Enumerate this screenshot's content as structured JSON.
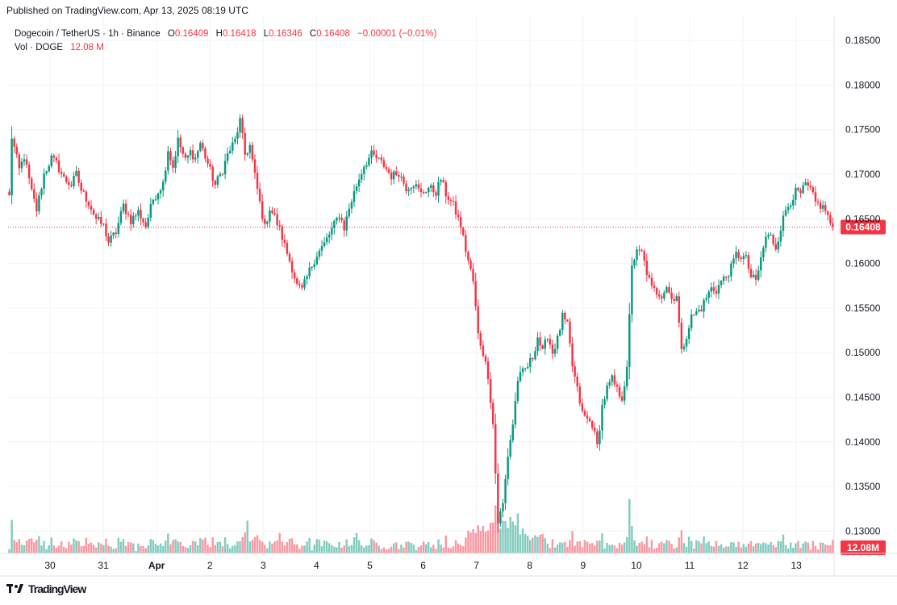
{
  "header": {
    "published": "Published on TradingView.com, Apr 13, 2025 08:19 UTC"
  },
  "legend": {
    "symbol": "Dogecoin / TetherUS · 1h · Binance",
    "o_label": "O",
    "o_value": "0.16409",
    "h_label": "H",
    "h_value": "0.16418",
    "l_label": "L",
    "l_value": "0.16346",
    "c_label": "C",
    "c_value": "0.16408",
    "change": "−0.00001 (−0.01%)",
    "vol_label": "Vol · DOGE",
    "vol_value": "12.08 M"
  },
  "footer": {
    "brand": "TradingView"
  },
  "colors": {
    "up": "#089981",
    "down": "#f23645",
    "grid": "#f0f3fa",
    "axis_text": "#131722"
  },
  "chart_data": {
    "type": "candlestick",
    "symbol": "DOGE/USDT",
    "interval": "1h",
    "y_ticks": [
      "0.18500",
      "0.18000",
      "0.17500",
      "0.17000",
      "0.16500",
      "0.16000",
      "0.15500",
      "0.15000",
      "0.14500",
      "0.14000",
      "0.13500",
      "0.13000"
    ],
    "ylim": [
      0.1275,
      0.187
    ],
    "x_ticks": [
      "30",
      "31",
      "Apr",
      "2",
      "3",
      "4",
      "5",
      "6",
      "7",
      "8",
      "9",
      "10",
      "11",
      "12",
      "13"
    ],
    "last_price_label": "0.16408",
    "last_price": 0.16408,
    "volume_label": "12.08M",
    "anchors": [
      [
        0,
        0.1675
      ],
      [
        1,
        0.1742
      ],
      [
        4,
        0.1705
      ],
      [
        6,
        0.172
      ],
      [
        9,
        0.168
      ],
      [
        11,
        0.166
      ],
      [
        14,
        0.17
      ],
      [
        17,
        0.1718
      ],
      [
        19,
        0.1712
      ],
      [
        22,
        0.1695
      ],
      [
        25,
        0.1688
      ],
      [
        27,
        0.17
      ],
      [
        29,
        0.1682
      ],
      [
        32,
        0.1668
      ],
      [
        35,
        0.165
      ],
      [
        38,
        0.1642
      ],
      [
        40,
        0.1624
      ],
      [
        43,
        0.1635
      ],
      [
        46,
        0.1665
      ],
      [
        49,
        0.1648
      ],
      [
        52,
        0.1658
      ],
      [
        55,
        0.1642
      ],
      [
        58,
        0.1672
      ],
      [
        62,
        0.169
      ],
      [
        64,
        0.1728
      ],
      [
        66,
        0.1708
      ],
      [
        68,
        0.1738
      ],
      [
        71,
        0.1715
      ],
      [
        73,
        0.1725
      ],
      [
        75,
        0.1718
      ],
      [
        77,
        0.1735
      ],
      [
        80,
        0.1712
      ],
      [
        83,
        0.1688
      ],
      [
        86,
        0.1705
      ],
      [
        88,
        0.1722
      ],
      [
        91,
        0.1738
      ],
      [
        93,
        0.176
      ],
      [
        95,
        0.1722
      ],
      [
        97,
        0.1732
      ],
      [
        99,
        0.1698
      ],
      [
        101,
        0.1668
      ],
      [
        103,
        0.164
      ],
      [
        105,
        0.1662
      ],
      [
        107,
        0.1652
      ],
      [
        109,
        0.1638
      ],
      [
        111,
        0.162
      ],
      [
        114,
        0.1595
      ],
      [
        116,
        0.1575
      ],
      [
        118,
        0.157
      ],
      [
        121,
        0.1592
      ],
      [
        124,
        0.161
      ],
      [
        127,
        0.1622
      ],
      [
        130,
        0.1638
      ],
      [
        133,
        0.1655
      ],
      [
        135,
        0.164
      ],
      [
        137,
        0.1662
      ],
      [
        140,
        0.1688
      ],
      [
        143,
        0.171
      ],
      [
        146,
        0.1722
      ],
      [
        148,
        0.1718
      ],
      [
        151,
        0.171
      ],
      [
        154,
        0.1698
      ],
      [
        157,
        0.1702
      ],
      [
        160,
        0.1685
      ],
      [
        163,
        0.169
      ],
      [
        166,
        0.1678
      ],
      [
        169,
        0.1685
      ],
      [
        172,
        0.168
      ],
      [
        174,
        0.1695
      ],
      [
        176,
        0.1678
      ],
      [
        179,
        0.1665
      ],
      [
        182,
        0.1642
      ],
      [
        184,
        0.1615
      ],
      [
        187,
        0.158
      ],
      [
        189,
        0.152
      ],
      [
        191,
        0.15
      ],
      [
        193,
        0.1475
      ],
      [
        195,
        0.142
      ],
      [
        197,
        0.131
      ],
      [
        199,
        0.133
      ],
      [
        201,
        0.1385
      ],
      [
        203,
        0.142
      ],
      [
        205,
        0.147
      ],
      [
        207,
        0.1478
      ],
      [
        209,
        0.1485
      ],
      [
        211,
        0.1495
      ],
      [
        213,
        0.1518
      ],
      [
        215,
        0.15
      ],
      [
        217,
        0.152
      ],
      [
        219,
        0.15
      ],
      [
        221,
        0.1515
      ],
      [
        223,
        0.154
      ],
      [
        225,
        0.153
      ],
      [
        227,
        0.1485
      ],
      [
        229,
        0.1458
      ],
      [
        231,
        0.1432
      ],
      [
        233,
        0.1425
      ],
      [
        235,
        0.142
      ],
      [
        237,
        0.1395
      ],
      [
        239,
        0.144
      ],
      [
        241,
        0.146
      ],
      [
        243,
        0.147
      ],
      [
        245,
        0.1458
      ],
      [
        247,
        0.145
      ],
      [
        249,
        0.148
      ],
      [
        251,
        0.16
      ],
      [
        253,
        0.1612
      ],
      [
        255,
        0.1612
      ],
      [
        257,
        0.159
      ],
      [
        259,
        0.1572
      ],
      [
        261,
        0.1568
      ],
      [
        263,
        0.1565
      ],
      [
        265,
        0.1575
      ],
      [
        267,
        0.156
      ],
      [
        269,
        0.1565
      ],
      [
        271,
        0.15
      ],
      [
        273,
        0.152
      ],
      [
        275,
        0.154
      ],
      [
        277,
        0.1545
      ],
      [
        279,
        0.155
      ],
      [
        281,
        0.1562
      ],
      [
        283,
        0.1572
      ],
      [
        285,
        0.157
      ],
      [
        287,
        0.158
      ],
      [
        289,
        0.1585
      ],
      [
        291,
        0.1595
      ],
      [
        293,
        0.161
      ],
      [
        295,
        0.1608
      ],
      [
        297,
        0.1605
      ],
      [
        299,
        0.1585
      ],
      [
        301,
        0.158
      ],
      [
        303,
        0.1605
      ],
      [
        305,
        0.163
      ],
      [
        307,
        0.163
      ],
      [
        309,
        0.1618
      ],
      [
        311,
        0.164
      ],
      [
        313,
        0.166
      ],
      [
        315,
        0.167
      ],
      [
        317,
        0.168
      ],
      [
        319,
        0.1678
      ],
      [
        321,
        0.1688
      ],
      [
        323,
        0.1682
      ],
      [
        325,
        0.1668
      ],
      [
        327,
        0.1665
      ],
      [
        329,
        0.166
      ],
      [
        331,
        0.1645
      ],
      [
        332,
        0.1641
      ]
    ],
    "volume_spikes": [
      [
        96,
        0.45
      ],
      [
        199,
        0.45
      ],
      [
        202,
        0.5
      ],
      [
        205,
        0.55
      ],
      [
        250,
        0.75
      ],
      [
        192,
        0.3
      ],
      [
        188,
        0.28
      ],
      [
        109,
        0.28
      ],
      [
        140,
        0.28
      ],
      [
        270,
        0.22
      ]
    ]
  }
}
